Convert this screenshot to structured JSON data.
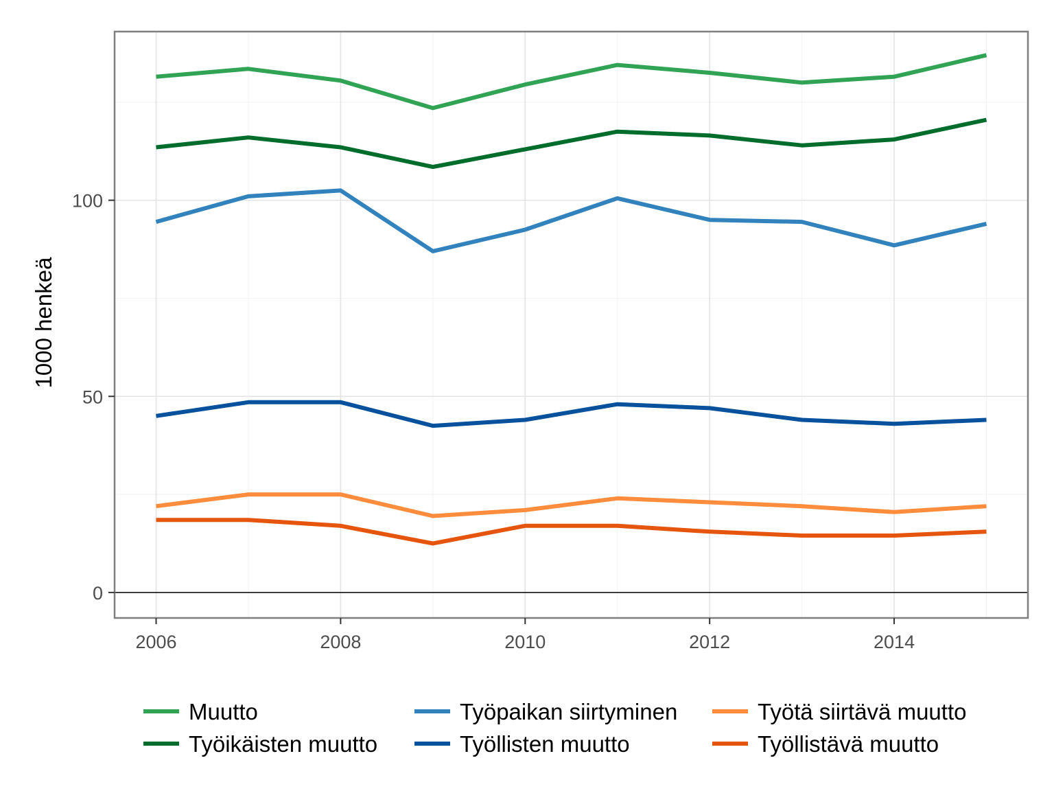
{
  "chart_data": {
    "type": "line",
    "title": "",
    "xlabel": "",
    "ylabel": "1000 henkeä",
    "x": [
      2006,
      2007,
      2008,
      2009,
      2010,
      2011,
      2012,
      2013,
      2014,
      2015
    ],
    "xlim": [
      2005.55,
      2015.45
    ],
    "ylim": [
      -6.5,
      143
    ],
    "x_ticks": [
      "2006",
      "2008",
      "2010",
      "2012",
      "2014"
    ],
    "y_ticks": [
      "0",
      "50",
      "100"
    ],
    "grid": true,
    "zero_line": true,
    "legend_position": "bottom",
    "series": [
      {
        "name": "Muutto",
        "color": "#31a354",
        "values": [
          131.5,
          133.5,
          130.5,
          123.5,
          129.5,
          134.5,
          132.5,
          130,
          131.5,
          137
        ]
      },
      {
        "name": "Työikäisten muutto",
        "color": "#006d2c",
        "values": [
          113.5,
          116,
          113.5,
          108.5,
          113,
          117.5,
          116.5,
          114,
          115.5,
          120.5
        ]
      },
      {
        "name": "Työpaikan siirtyminen",
        "color": "#3182bd",
        "values": [
          94.5,
          101,
          102.5,
          87,
          92.5,
          100.5,
          95,
          94.5,
          88.5,
          94
        ]
      },
      {
        "name": "Työllisten muutto",
        "color": "#08519c",
        "values": [
          45,
          48.5,
          48.5,
          42.5,
          44,
          48,
          47,
          44,
          43,
          44
        ]
      },
      {
        "name": "Työtä siirtävä muutto",
        "color": "#fd8d3c",
        "values": [
          22,
          25,
          25,
          19.5,
          21,
          24,
          23,
          22,
          20.5,
          22
        ]
      },
      {
        "name": "Työllistävä muutto",
        "color": "#e6550d",
        "values": [
          18.5,
          18.5,
          17,
          12.5,
          17,
          17,
          15.5,
          14.5,
          14.5,
          15.5
        ]
      }
    ]
  }
}
